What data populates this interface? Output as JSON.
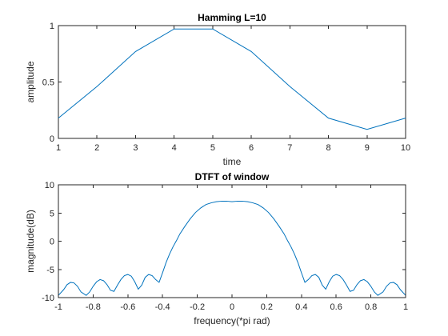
{
  "chart_data": [
    {
      "type": "line",
      "title": "Hamming L=10",
      "xlabel": "time",
      "ylabel": "amplitude",
      "xlim": [
        1,
        10
      ],
      "ylim": [
        0,
        1
      ],
      "xticks": [
        1,
        2,
        3,
        4,
        5,
        6,
        7,
        8,
        9,
        10
      ],
      "xtick_labels": [
        "1",
        "2",
        "3",
        "4",
        "5",
        "6",
        "7",
        "8",
        "9",
        "10"
      ],
      "yticks": [
        0,
        0.5,
        1
      ],
      "ytick_labels": [
        "0",
        "0.5",
        "1"
      ],
      "grid": false,
      "color": "#0072bd",
      "x": [
        1,
        2,
        3,
        4,
        5,
        6,
        7,
        8,
        9,
        10
      ],
      "y": [
        0.18,
        0.46,
        0.77,
        0.97,
        0.97,
        0.77,
        0.46,
        0.18,
        0.08,
        0.18
      ]
    },
    {
      "type": "line",
      "title": "DTFT of window",
      "xlabel": "frequency(*pi rad)",
      "ylabel": "magnitude(dB)",
      "xlim": [
        -1,
        1
      ],
      "ylim": [
        -10,
        10
      ],
      "xticks": [
        -1,
        -0.8,
        -0.6,
        -0.4,
        -0.2,
        0,
        0.2,
        0.4,
        0.6,
        0.8,
        1
      ],
      "xtick_labels": [
        "-1",
        "-0.8",
        "-0.6",
        "-0.4",
        "-0.2",
        "0",
        "0.2",
        "0.4",
        "0.6",
        "0.8",
        "1"
      ],
      "yticks": [
        -10,
        -5,
        0,
        5,
        10
      ],
      "ytick_labels": [
        "-10",
        "-5",
        "0",
        "5",
        "10"
      ],
      "grid": false,
      "color": "#0072bd",
      "x": [
        -1,
        -0.97,
        -0.95,
        -0.93,
        -0.91,
        -0.89,
        -0.87,
        -0.84,
        -0.82,
        -0.8,
        -0.78,
        -0.76,
        -0.74,
        -0.72,
        -0.7,
        -0.68,
        -0.66,
        -0.64,
        -0.62,
        -0.6,
        -0.58,
        -0.56,
        -0.54,
        -0.52,
        -0.5,
        -0.48,
        -0.46,
        -0.44,
        -0.42,
        -0.4,
        -0.38,
        -0.36,
        -0.34,
        -0.32,
        -0.3,
        -0.27,
        -0.24,
        -0.21,
        -0.18,
        -0.15,
        -0.12,
        -0.09,
        -0.06,
        -0.03,
        0,
        0.03,
        0.06,
        0.09,
        0.12,
        0.15,
        0.18,
        0.21,
        0.24,
        0.27,
        0.3,
        0.32,
        0.34,
        0.36,
        0.38,
        0.4,
        0.42,
        0.44,
        0.46,
        0.48,
        0.5,
        0.52,
        0.54,
        0.56,
        0.58,
        0.6,
        0.62,
        0.64,
        0.66,
        0.68,
        0.7,
        0.72,
        0.74,
        0.76,
        0.78,
        0.8,
        0.82,
        0.84,
        0.87,
        0.89,
        0.91,
        0.93,
        0.95,
        0.97,
        1
      ],
      "y": [
        -9.6,
        -8.6,
        -7.7,
        -7.3,
        -7.4,
        -8.0,
        -9.0,
        -9.6,
        -9.0,
        -8.0,
        -7.2,
        -6.8,
        -7.0,
        -7.7,
        -8.7,
        -8.9,
        -7.8,
        -6.8,
        -6.1,
        -5.9,
        -6.2,
        -7.2,
        -8.5,
        -7.8,
        -6.4,
        -5.9,
        -6.1,
        -6.8,
        -7.3,
        -5.6,
        -3.8,
        -2.3,
        -1.0,
        0.1,
        1.3,
        2.7,
        4.0,
        5.1,
        5.9,
        6.5,
        6.8,
        7.0,
        7.1,
        7.1,
        7.0,
        7.1,
        7.1,
        7.0,
        6.8,
        6.5,
        5.9,
        5.1,
        4.0,
        2.7,
        1.3,
        0.1,
        -1.0,
        -2.3,
        -3.8,
        -5.6,
        -7.3,
        -6.8,
        -6.1,
        -5.9,
        -6.4,
        -7.8,
        -8.5,
        -7.2,
        -6.2,
        -5.9,
        -6.1,
        -6.8,
        -7.8,
        -8.9,
        -8.7,
        -7.7,
        -7.0,
        -6.8,
        -7.2,
        -8.0,
        -9.0,
        -9.6,
        -9.0,
        -8.0,
        -7.4,
        -7.3,
        -7.7,
        -8.6,
        -9.6
      ]
    }
  ]
}
